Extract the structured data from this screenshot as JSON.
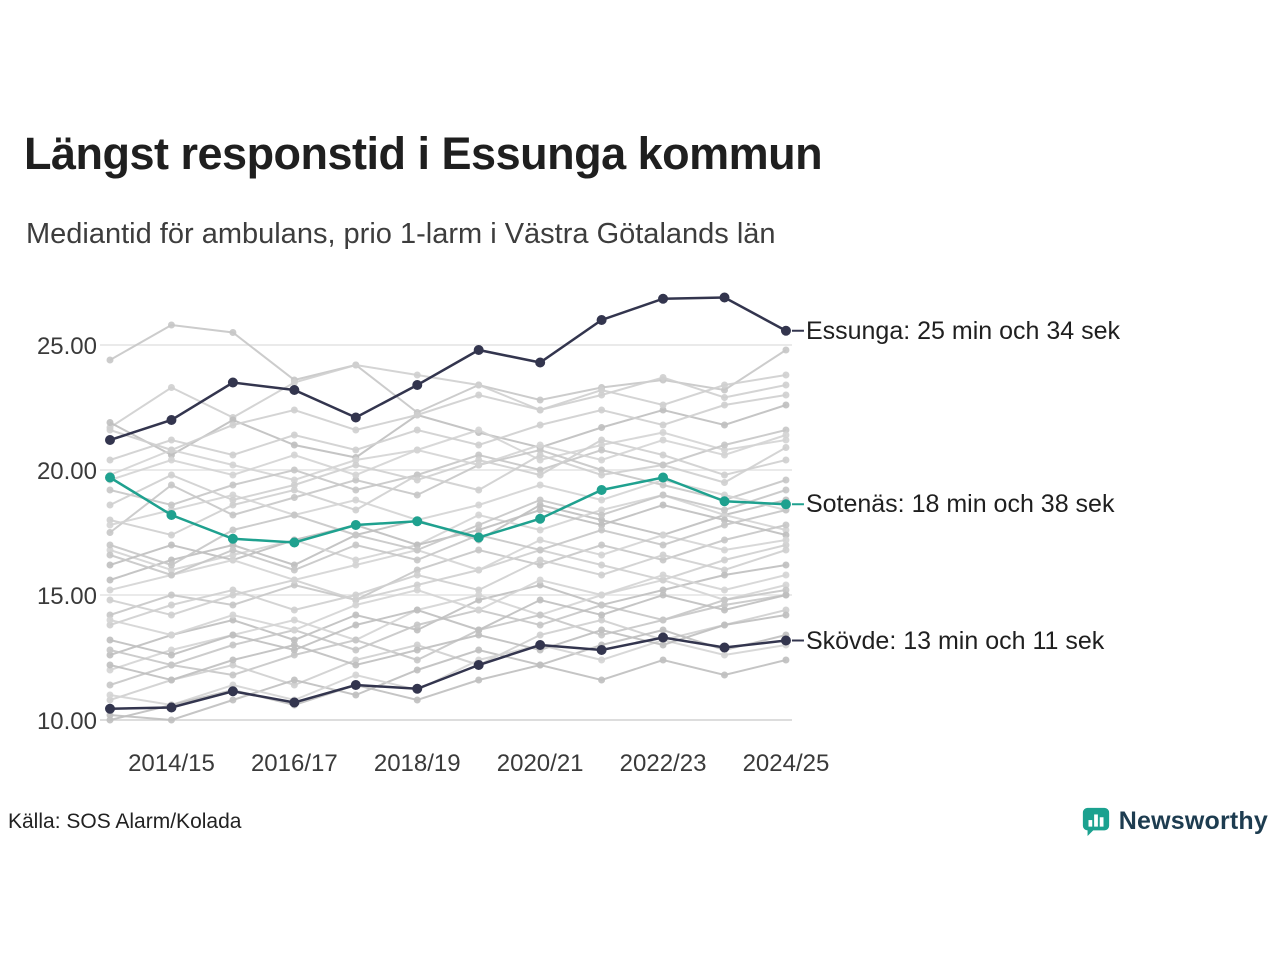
{
  "header": {
    "title": "Längst responstid i Essunga kommun",
    "subtitle": "Mediantid för ambulans, prio 1-larm i Västra Götalands län"
  },
  "footer": {
    "source": "Källa: SOS Alarm/Kolada",
    "brand": "Newsworthy"
  },
  "colors": {
    "dark": "#33354e",
    "teal": "#1fa18f",
    "grid": "#e4e4e4",
    "axis_text": "#3a3a3a",
    "title_text": "#1f1f1f",
    "background_line": "#c6c6c6",
    "brand_teal": "#1ba18f",
    "brand_navy": "#1d3c50"
  },
  "chart_data": {
    "type": "line",
    "x": [
      "2013/14",
      "2014/15",
      "2015/16",
      "2016/17",
      "2017/18",
      "2018/19",
      "2019/20",
      "2020/21",
      "2021/22",
      "2022/23",
      "2023/24",
      "2024/25"
    ],
    "x_tick_labels": [
      "2014/15",
      "2016/17",
      "2018/19",
      "2020/21",
      "2022/23",
      "2024/25"
    ],
    "y_ticks": [
      10,
      15,
      20,
      25
    ],
    "y_tick_labels": [
      "10.00",
      "15.00",
      "20.00",
      "25.00"
    ],
    "ylim": [
      9.9,
      27.6
    ],
    "xlabel": "",
    "ylabel": "",
    "series": [
      {
        "name": "Essunga",
        "color_role": "dark",
        "label": "Essunga: 25 min och 34 sek",
        "final_value_text": "25 min och 34 sek",
        "values": [
          21.2,
          22.0,
          23.5,
          23.2,
          22.1,
          23.4,
          24.8,
          24.3,
          26.0,
          26.85,
          26.9,
          25.57
        ]
      },
      {
        "name": "Sotenäs",
        "color_role": "teal",
        "label": "Sotenäs: 18 min och 38 sek",
        "final_value_text": "18 min och 38 sek",
        "values": [
          19.7,
          18.2,
          17.25,
          17.1,
          17.8,
          17.95,
          17.3,
          18.05,
          19.2,
          19.7,
          18.75,
          18.63
        ]
      },
      {
        "name": "Skövde",
        "color_role": "dark",
        "label": "Skövde: 13 min och 11 sek",
        "final_value_text": "13 min och 11 sek",
        "values": [
          10.45,
          10.5,
          11.15,
          10.7,
          11.4,
          11.25,
          12.2,
          13.0,
          12.8,
          13.3,
          12.9,
          13.18
        ]
      }
    ],
    "background_series": [
      [
        24.4,
        25.8,
        25.5,
        23.6,
        24.2,
        22.3,
        23.4,
        22.8,
        23.3,
        23.6,
        23.2,
        24.8
      ],
      [
        21.7,
        23.3,
        22.1,
        23.5,
        24.2,
        23.8,
        23.4,
        22.4,
        23.0,
        23.7,
        22.9,
        23.4
      ],
      [
        21.9,
        20.6,
        22.0,
        21.0,
        20.5,
        22.2,
        21.5,
        20.9,
        21.7,
        22.4,
        21.8,
        22.6
      ],
      [
        19.8,
        20.8,
        20.2,
        19.6,
        20.4,
        20.8,
        21.6,
        20.4,
        21.0,
        21.5,
        20.8,
        21.2
      ],
      [
        17.5,
        19.4,
        18.2,
        18.9,
        19.6,
        19.0,
        20.2,
        20.8,
        20.0,
        19.4,
        18.8,
        19.6
      ],
      [
        18.0,
        17.4,
        18.6,
        19.2,
        18.4,
        19.8,
        19.2,
        20.6,
        19.8,
        20.2,
        19.5,
        20.9
      ],
      [
        15.6,
        16.4,
        17.0,
        16.2,
        17.4,
        18.0,
        17.2,
        18.6,
        18.0,
        17.4,
        18.2,
        18.8
      ],
      [
        16.8,
        16.0,
        16.6,
        17.2,
        16.4,
        17.0,
        18.2,
        17.6,
        18.4,
        19.0,
        18.2,
        17.6
      ],
      [
        14.2,
        15.0,
        14.6,
        15.4,
        14.8,
        16.0,
        16.8,
        16.2,
        17.0,
        16.4,
        17.2,
        17.8
      ],
      [
        13.8,
        14.6,
        15.2,
        14.4,
        15.0,
        15.8,
        15.2,
        16.4,
        15.8,
        16.6,
        16.0,
        16.8
      ],
      [
        12.6,
        13.4,
        14.0,
        13.2,
        14.2,
        13.6,
        14.8,
        15.4,
        14.6,
        15.2,
        15.8,
        16.2
      ],
      [
        12.0,
        12.8,
        13.4,
        14.0,
        13.2,
        14.4,
        15.0,
        14.2,
        15.0,
        15.6,
        14.8,
        15.4
      ],
      [
        11.4,
        12.2,
        11.8,
        12.6,
        13.2,
        12.4,
        13.6,
        14.2,
        13.4,
        14.0,
        14.6,
        15.0
      ],
      [
        10.8,
        11.6,
        12.2,
        11.4,
        12.4,
        13.0,
        12.2,
        13.4,
        14.0,
        13.2,
        13.8,
        14.4
      ],
      [
        10.2,
        10.0,
        10.8,
        11.6,
        11.0,
        12.0,
        12.8,
        12.2,
        13.0,
        13.6,
        12.8,
        13.4
      ],
      [
        11.0,
        10.6,
        11.4,
        10.8,
        11.8,
        11.2,
        12.4,
        13.0,
        12.4,
        13.2,
        12.6,
        13.0
      ],
      [
        12.8,
        12.2,
        13.0,
        13.6,
        12.8,
        13.8,
        14.4,
        13.8,
        14.6,
        14.0,
        14.8,
        15.2
      ],
      [
        14.8,
        14.2,
        15.0,
        15.6,
        14.8,
        15.4,
        16.0,
        16.8,
        16.2,
        15.6,
        16.4,
        17.0
      ],
      [
        16.2,
        17.0,
        16.4,
        17.2,
        17.8,
        17.0,
        17.6,
        18.4,
        17.8,
        18.6,
        18.0,
        17.4
      ],
      [
        17.8,
        18.4,
        19.0,
        18.2,
        18.8,
        18.0,
        18.6,
        19.4,
        18.8,
        19.6,
        19.0,
        18.4
      ],
      [
        19.2,
        18.6,
        19.4,
        20.0,
        19.2,
        19.8,
        20.6,
        20.0,
        20.8,
        20.2,
        21.0,
        21.6
      ],
      [
        20.4,
        21.2,
        20.6,
        21.4,
        20.8,
        21.6,
        21.0,
        21.8,
        22.4,
        21.8,
        22.6,
        23.0
      ],
      [
        13.2,
        12.6,
        13.4,
        12.8,
        13.8,
        14.4,
        13.6,
        14.8,
        14.2,
        15.0,
        14.4,
        15.0
      ],
      [
        15.2,
        15.8,
        16.4,
        15.6,
        16.2,
        16.8,
        16.0,
        17.2,
        16.6,
        17.4,
        16.8,
        17.2
      ],
      [
        17.0,
        16.2,
        17.6,
        18.2,
        17.4,
        16.8,
        17.8,
        18.8,
        18.2,
        19.0,
        18.4,
        19.2
      ],
      [
        18.6,
        19.8,
        18.8,
        19.4,
        20.2,
        19.6,
        20.4,
        19.8,
        21.2,
        20.6,
        19.8,
        20.4
      ],
      [
        12.2,
        11.6,
        12.4,
        13.0,
        12.2,
        12.8,
        13.4,
        12.8,
        13.6,
        13.0,
        13.8,
        14.2
      ],
      [
        14.0,
        13.4,
        14.2,
        13.6,
        14.6,
        15.2,
        14.4,
        15.6,
        15.0,
        15.8,
        15.2,
        15.8
      ],
      [
        16.6,
        15.8,
        16.8,
        16.0,
        17.0,
        16.4,
        17.4,
        16.8,
        17.6,
        17.0,
        17.8,
        18.4
      ],
      [
        21.6,
        20.8,
        21.8,
        22.4,
        21.6,
        22.2,
        23.0,
        22.4,
        23.2,
        22.6,
        23.4,
        23.8
      ],
      [
        10.0,
        10.6,
        11.2,
        10.6,
        11.4,
        10.8,
        11.6,
        12.2,
        11.6,
        12.4,
        11.8,
        12.4
      ],
      [
        19.6,
        20.4,
        19.8,
        20.6,
        19.8,
        20.8,
        20.2,
        21.0,
        20.4,
        21.2,
        20.6,
        21.4
      ]
    ]
  }
}
